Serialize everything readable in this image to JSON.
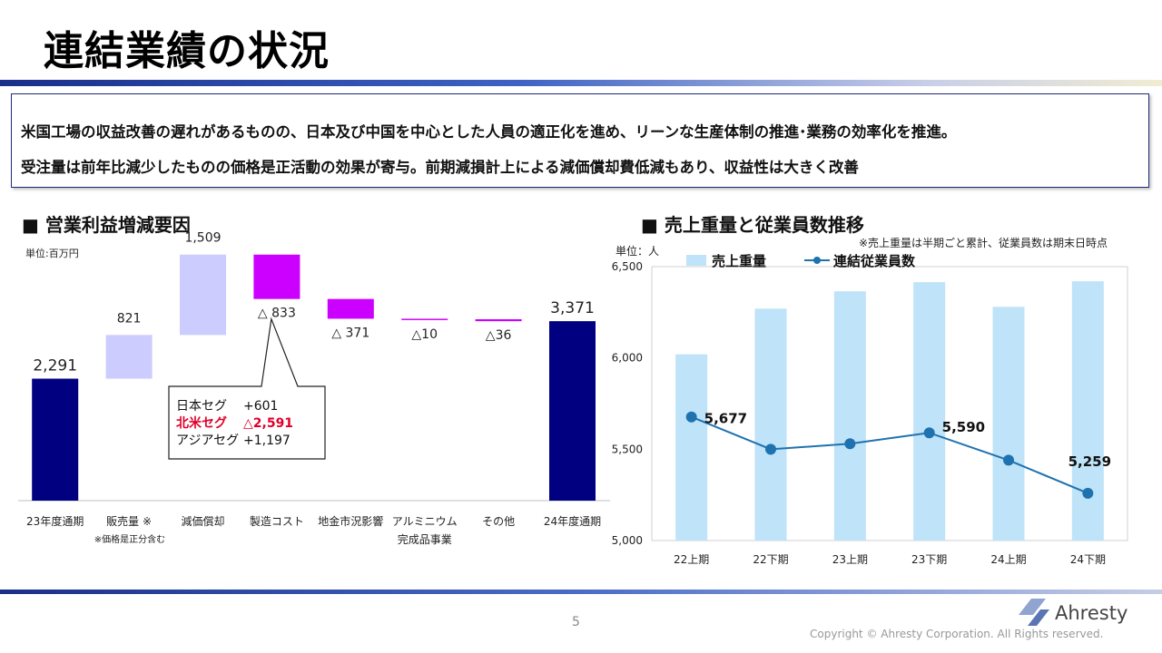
{
  "title": "連結業績の状況",
  "summary": {
    "line1": "米国工場の収益改善の遅れがあるものの、日本及び中国を中心とした人員の適正化を進め、リーンな生産体制の推進･業務の効率化を推進。",
    "line2": "受注量は前年比減少したものの価格是正活動の効果が寄与。前期減損計上による減価償却費低減もあり、収益性は大きく改善"
  },
  "left_section_title": "■ 営業利益増減要因",
  "right_section_title": "■ 売上重量と従業員数推移",
  "footer": {
    "page": "5",
    "copyright": "Copyright © Ahresty Corporation. All Rights reserved.",
    "logo_text": "Ahresty"
  },
  "colors": {
    "total_bar": "#000080",
    "increase_bar": "#ccccff",
    "decrease_bar": "#cc00ff",
    "weight_bar": "#bfe3f8",
    "employee_line": "#1f72b0"
  },
  "chart_data": [
    {
      "type": "bar",
      "subtype": "waterfall",
      "unit_label": "単位:百万円",
      "categories": [
        "23年度通期",
        "販売量 ※",
        "減価償却",
        "製造コスト",
        "地金市況影響",
        "アルミニウム完成品事業",
        "その他",
        "24年度通期"
      ],
      "category_lines": [
        [
          "23年度通期"
        ],
        [
          "販売量 ※"
        ],
        [
          "減価償却"
        ],
        [
          "製造コスト"
        ],
        [
          "地金市況影響"
        ],
        [
          "アルミニウム",
          "完成品事業"
        ],
        [
          "その他"
        ],
        [
          "24年度通期"
        ]
      ],
      "values": [
        2291,
        821,
        1509,
        -833,
        -371,
        -10,
        -36,
        3371
      ],
      "bar_kinds": [
        "total",
        "increase",
        "increase",
        "decrease",
        "decrease",
        "decrease",
        "decrease",
        "total"
      ],
      "data_labels": [
        "2,291",
        "821",
        "1,509",
        "△ 833",
        "△ 371",
        "△10",
        "△36",
        "3,371"
      ],
      "note": "※価格是正分含む",
      "callout": {
        "target": "製造コスト",
        "rows": [
          {
            "label": "日本セグ",
            "value": "+601",
            "highlight": false
          },
          {
            "label": "北米セグ",
            "value": "△2,591",
            "highlight": true
          },
          {
            "label": "アジアセグ",
            "value": "+1,197",
            "highlight": false
          }
        ]
      },
      "ylim": [
        0,
        4000
      ],
      "grid": false
    },
    {
      "type": "bar+line",
      "unit_label": "単位：人",
      "note": "※売上重量は半期ごと累計、従業員数は期末日時点",
      "categories": [
        "22上期",
        "22下期",
        "23上期",
        "23下期",
        "24上期",
        "24下期"
      ],
      "series": [
        {
          "name": "売上重量",
          "type": "bar",
          "values": [
            6020,
            6270,
            6365,
            6415,
            6280,
            6420
          ]
        },
        {
          "name": "連結従業員数",
          "type": "line",
          "values": [
            5677,
            5500,
            5530,
            5590,
            5440,
            5259
          ]
        }
      ],
      "data_labels": [
        {
          "index": 0,
          "text": "5,677"
        },
        {
          "index": 3,
          "text": "5,590"
        },
        {
          "index": 5,
          "text": "5,259"
        }
      ],
      "yticks": [
        "5,000",
        "5,500",
        "6,000",
        "6,500"
      ],
      "ylim": [
        5000,
        6500
      ],
      "legend": "top",
      "grid": false
    }
  ]
}
